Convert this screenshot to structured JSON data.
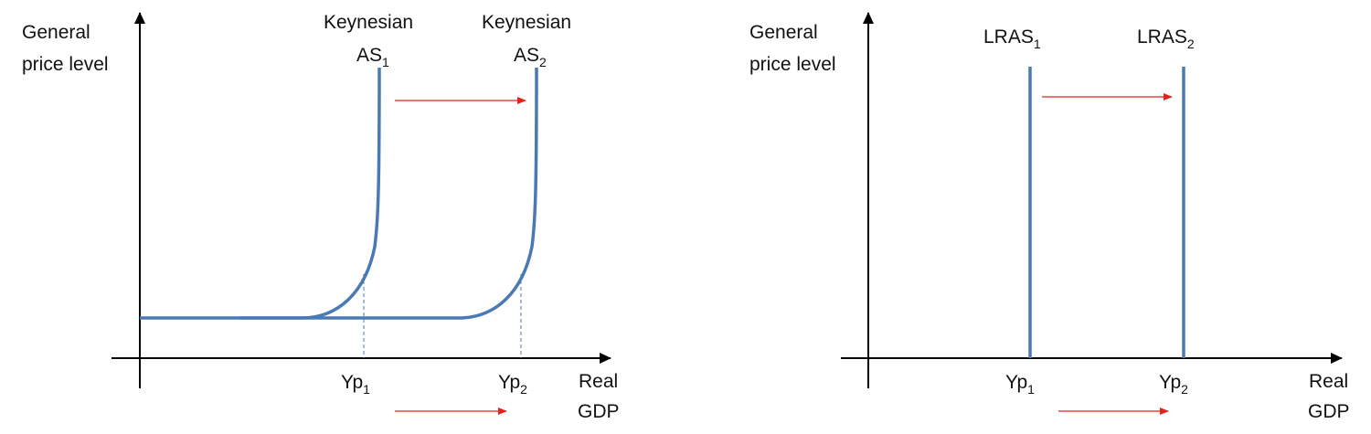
{
  "left_panel": {
    "y_axis_label": [
      "General",
      "price level"
    ],
    "x_axis_label": [
      "Real",
      "GDP"
    ],
    "curve1_label": {
      "line1": "Keynesian",
      "main": "AS",
      "sub": "1"
    },
    "curve2_label": {
      "line1": "Keynesian",
      "main": "AS",
      "sub": "2"
    },
    "tick1": {
      "main": "Yp",
      "sub": "1"
    },
    "tick2": {
      "main": "Yp",
      "sub": "2"
    }
  },
  "right_panel": {
    "y_axis_label": [
      "General",
      "price level"
    ],
    "x_axis_label": [
      "Real",
      "GDP"
    ],
    "curve1_label": {
      "main": "LRAS",
      "sub": "1"
    },
    "curve2_label": {
      "main": "LRAS",
      "sub": "2"
    },
    "tick1": {
      "main": "Yp",
      "sub": "1"
    },
    "tick2": {
      "main": "Yp",
      "sub": "2"
    }
  },
  "colors": {
    "curve": "#4a7ab5",
    "shift_arrow": "#e8201a",
    "axis": "#000000"
  }
}
